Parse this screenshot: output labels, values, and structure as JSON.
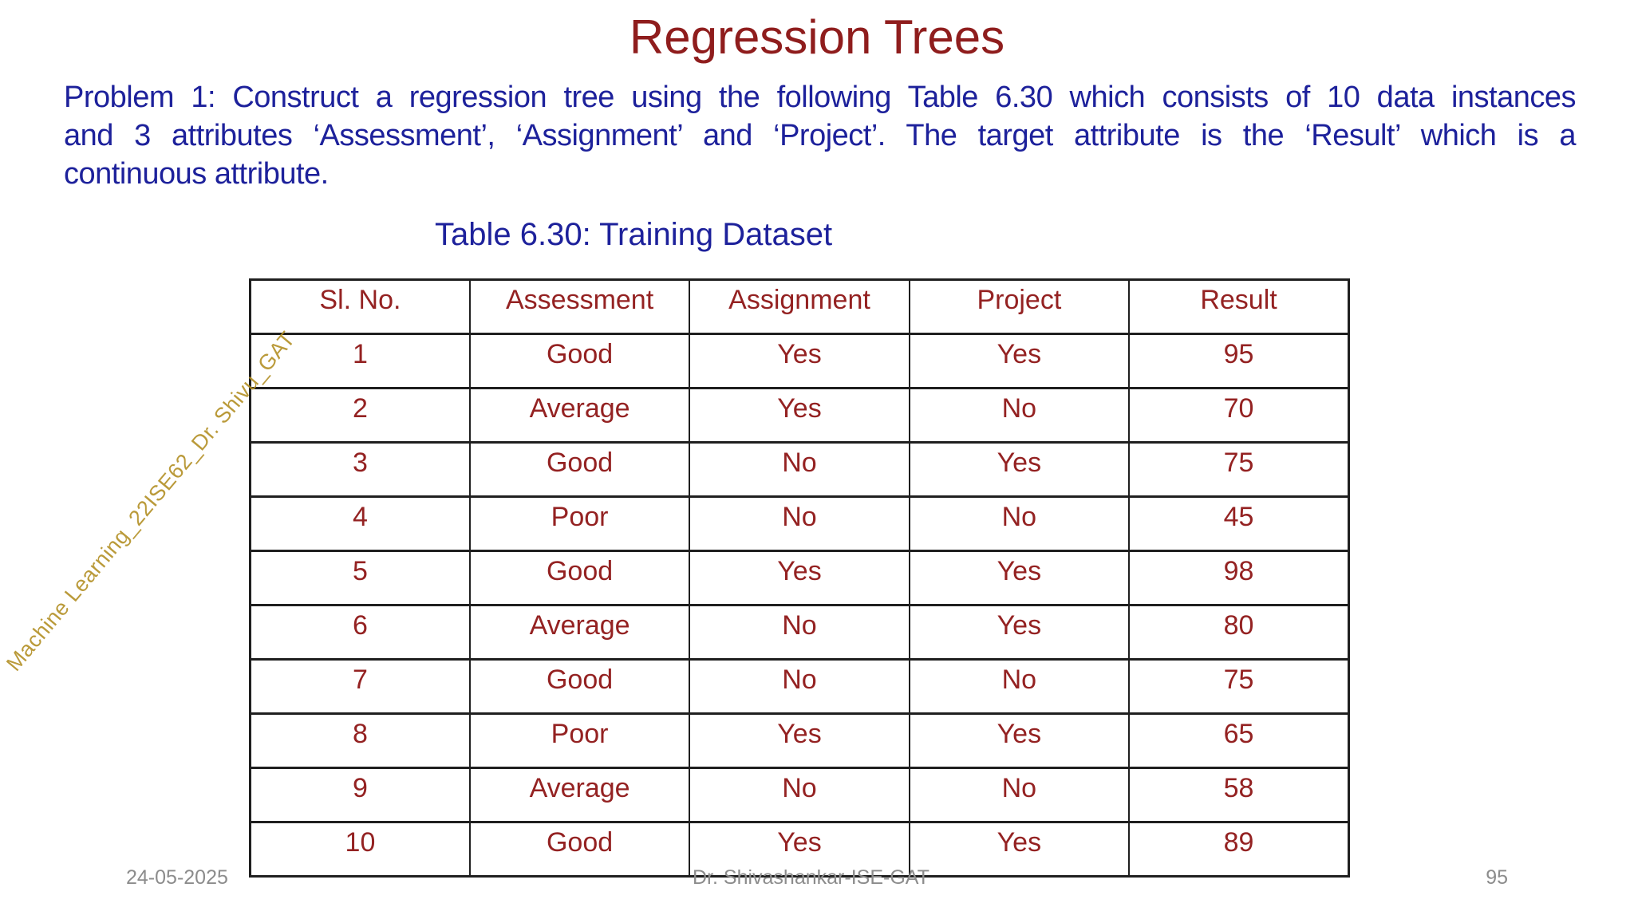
{
  "slide": {
    "title": "Regression Trees",
    "problem_lines": [
      "Problem 1: Construct a regression tree using the following Table 6.30 which consists of 10 data instances",
      "and 3 attributes ‘Assessment’, ‘Assignment’ and ‘Project’. The target attribute is the ‘Result’ which is a",
      "continuous attribute."
    ],
    "table_caption": "Table 6.30: Training Dataset",
    "table": {
      "headers": [
        "Sl. No.",
        "Assessment",
        "Assignment",
        "Project",
        "Result"
      ],
      "rows": [
        [
          "1",
          "Good",
          "Yes",
          "Yes",
          "95"
        ],
        [
          "2",
          "Average",
          "Yes",
          "No",
          "70"
        ],
        [
          "3",
          "Good",
          "No",
          "Yes",
          "75"
        ],
        [
          "4",
          "Poor",
          "No",
          "No",
          "45"
        ],
        [
          "5",
          "Good",
          "Yes",
          "Yes",
          "98"
        ],
        [
          "6",
          "Average",
          "No",
          "Yes",
          "80"
        ],
        [
          "7",
          "Good",
          "No",
          "No",
          "75"
        ],
        [
          "8",
          "Poor",
          "Yes",
          "Yes",
          "65"
        ],
        [
          "9",
          "Average",
          "No",
          "No",
          "58"
        ],
        [
          "10",
          "Good",
          "Yes",
          "Yes",
          "89"
        ]
      ]
    },
    "watermark": "Machine Learning_22ISE62_Dr. Shivu_GAT",
    "footer": {
      "date": "24-05-2025",
      "author": "Dr. Shivashankar-ISE-GAT",
      "page_number": "95"
    },
    "colors": {
      "title_red": "#8f1d1d",
      "body_blue": "#1d219b",
      "table_text_red": "#942222",
      "watermark_gold": "#b39025",
      "footer_gray": "#8c8c8c",
      "border_dark": "#1f1f1f"
    }
  }
}
